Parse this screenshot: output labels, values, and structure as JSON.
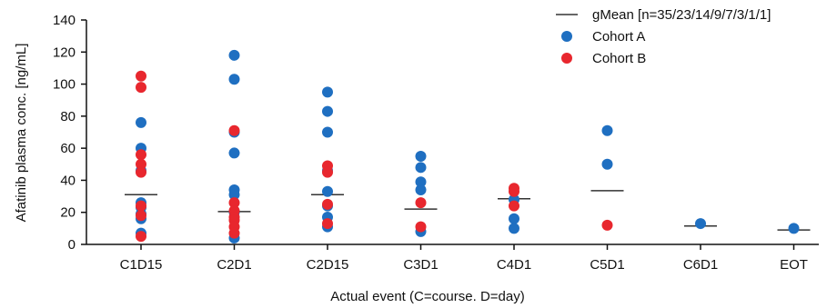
{
  "chart_data": {
    "type": "scatter",
    "title": "",
    "xlabel": "Actual event (C=course. D=day)",
    "ylabel": "Afatinib plasma conc. [ng/mL]",
    "categories": [
      "C1D15",
      "C2D1",
      "C2D15",
      "C3D1",
      "C4D1",
      "C5D1",
      "C6D1",
      "EOT"
    ],
    "ylim": [
      0,
      140
    ],
    "yticks": [
      0,
      20,
      40,
      60,
      80,
      100,
      120,
      140
    ],
    "grid": false,
    "legend_position": "top-right",
    "gmean": {
      "name": "gMean [n=35/23/14/9/7/3/1/1]",
      "values": [
        31,
        20.5,
        31,
        22,
        28.5,
        33.5,
        11.5,
        9
      ]
    },
    "series": [
      {
        "name": "Cohort A",
        "color": "#1f6fc1",
        "points": [
          [
            "C1D15",
            76
          ],
          [
            "C1D15",
            60
          ],
          [
            "C1D15",
            46
          ],
          [
            "C1D15",
            26
          ],
          [
            "C1D15",
            23
          ],
          [
            "C1D15",
            19
          ],
          [
            "C1D15",
            16
          ],
          [
            "C1D15",
            7
          ],
          [
            "C2D1",
            118
          ],
          [
            "C2D1",
            103
          ],
          [
            "C2D1",
            70
          ],
          [
            "C2D1",
            57
          ],
          [
            "C2D1",
            34
          ],
          [
            "C2D1",
            31
          ],
          [
            "C2D1",
            20
          ],
          [
            "C2D1",
            4
          ],
          [
            "C2D15",
            95
          ],
          [
            "C2D15",
            83
          ],
          [
            "C2D15",
            70
          ],
          [
            "C2D15",
            46
          ],
          [
            "C2D15",
            33
          ],
          [
            "C2D15",
            24
          ],
          [
            "C2D15",
            17
          ],
          [
            "C2D15",
            11
          ],
          [
            "C3D1",
            55
          ],
          [
            "C3D1",
            48
          ],
          [
            "C3D1",
            39
          ],
          [
            "C3D1",
            34
          ],
          [
            "C3D1",
            8
          ],
          [
            "C4D1",
            28
          ],
          [
            "C4D1",
            16
          ],
          [
            "C4D1",
            10
          ],
          [
            "C5D1",
            71
          ],
          [
            "C5D1",
            50
          ],
          [
            "C6D1",
            13
          ],
          [
            "EOT",
            10
          ]
        ]
      },
      {
        "name": "Cohort B",
        "color": "#e8272e",
        "points": [
          [
            "C1D15",
            105
          ],
          [
            "C1D15",
            98
          ],
          [
            "C1D15",
            56
          ],
          [
            "C1D15",
            50
          ],
          [
            "C1D15",
            45
          ],
          [
            "C1D15",
            24
          ],
          [
            "C1D15",
            18
          ],
          [
            "C1D15",
            5
          ],
          [
            "C2D1",
            71
          ],
          [
            "C2D1",
            26
          ],
          [
            "C2D1",
            21
          ],
          [
            "C2D1",
            17
          ],
          [
            "C2D1",
            15
          ],
          [
            "C2D1",
            11
          ],
          [
            "C2D1",
            7
          ],
          [
            "C2D15",
            49
          ],
          [
            "C2D15",
            45
          ],
          [
            "C2D15",
            25
          ],
          [
            "C2D15",
            13
          ],
          [
            "C3D1",
            26
          ],
          [
            "C3D1",
            11
          ],
          [
            "C4D1",
            35
          ],
          [
            "C4D1",
            33
          ],
          [
            "C4D1",
            24
          ],
          [
            "C5D1",
            12
          ]
        ]
      }
    ]
  }
}
